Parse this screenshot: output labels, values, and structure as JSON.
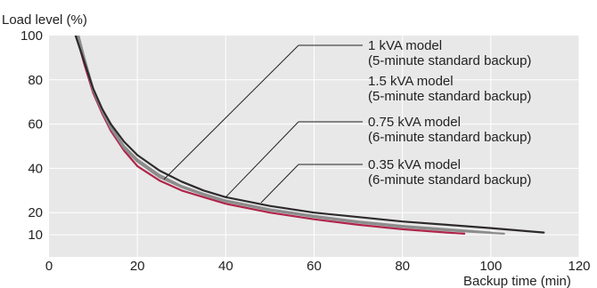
{
  "chart_data": {
    "type": "line",
    "title": "",
    "xlabel": "Backup time (min)",
    "ylabel": "Load level (%)",
    "xlim": [
      0,
      120
    ],
    "ylim": [
      0,
      100
    ],
    "x_ticks": [
      0,
      20,
      40,
      60,
      80,
      100,
      120
    ],
    "y_ticks": [
      10,
      20,
      40,
      60,
      80,
      100
    ],
    "grid": true,
    "colors": {
      "background": "#e8e8e8",
      "grid": "#ffffff",
      "dark_series": "#2e2a2c",
      "gray_series": "#8c8c8c",
      "red_series": "#b0244a",
      "annotation_line": "#222222"
    },
    "series": [
      {
        "name": "1 kVA model (5-minute standard backup)",
        "color": "#8c8c8c",
        "points": [
          [
            6.7,
            100
          ],
          [
            8,
            90
          ],
          [
            10,
            76
          ],
          [
            12,
            67
          ],
          [
            14,
            59
          ],
          [
            17,
            50
          ],
          [
            20,
            44
          ],
          [
            25,
            37
          ],
          [
            30,
            32
          ],
          [
            35,
            28.5
          ],
          [
            40,
            25.5
          ],
          [
            50,
            21.5
          ],
          [
            60,
            18.5
          ],
          [
            70,
            16
          ],
          [
            80,
            14
          ],
          [
            90,
            12.5
          ],
          [
            100,
            11
          ]
        ]
      },
      {
        "name": "1.5 kVA model (5-minute standard backup)",
        "color": "#b0244a",
        "points": [
          [
            6.2,
            100
          ],
          [
            8,
            87
          ],
          [
            10,
            74
          ],
          [
            12,
            65
          ],
          [
            14,
            57
          ],
          [
            17,
            48
          ],
          [
            20,
            41
          ],
          [
            25,
            34.5
          ],
          [
            30,
            30
          ],
          [
            35,
            27
          ],
          [
            40,
            24
          ],
          [
            50,
            20
          ],
          [
            60,
            17
          ],
          [
            70,
            14.5
          ],
          [
            80,
            12.5
          ],
          [
            90,
            11
          ],
          [
            94,
            10.5
          ]
        ]
      },
      {
        "name": "0.75 kVA model (6-minute standard backup)",
        "color": "#8c8c8c",
        "points": [
          [
            6.5,
            100
          ],
          [
            8,
            89
          ],
          [
            10,
            75
          ],
          [
            12,
            66
          ],
          [
            14,
            58
          ],
          [
            17,
            49
          ],
          [
            20,
            43
          ],
          [
            25,
            36
          ],
          [
            30,
            31.5
          ],
          [
            35,
            28
          ],
          [
            40,
            25
          ],
          [
            50,
            21
          ],
          [
            60,
            18
          ],
          [
            70,
            15.5
          ],
          [
            80,
            13.5
          ],
          [
            90,
            12
          ],
          [
            103,
            10.5
          ]
        ]
      },
      {
        "name": "0.35 kVA model (6-minute standard backup)",
        "color": "#2e2a2c",
        "points": [
          [
            6,
            100
          ],
          [
            8,
            88
          ],
          [
            10,
            76
          ],
          [
            12,
            67
          ],
          [
            14,
            60
          ],
          [
            17,
            52
          ],
          [
            20,
            46
          ],
          [
            25,
            39
          ],
          [
            30,
            34
          ],
          [
            35,
            30
          ],
          [
            40,
            27
          ],
          [
            50,
            23
          ],
          [
            60,
            20
          ],
          [
            70,
            18
          ],
          [
            80,
            16
          ],
          [
            90,
            14.5
          ],
          [
            100,
            13
          ],
          [
            112,
            11
          ]
        ]
      }
    ],
    "legend": [
      {
        "model": "1 kVA model",
        "backup": "(5-minute standard backup)",
        "target": [
          26,
          35
        ]
      },
      {
        "model": "1.5 kVA model",
        "backup": "(5-minute standard backup)",
        "target": null
      },
      {
        "model": "0.75 kVA model",
        "backup": "(6-minute standard backup)",
        "target": [
          40,
          27
        ]
      },
      {
        "model": "0.35 kVA model",
        "backup": "(6-minute standard backup)",
        "target": [
          48,
          24.5
        ]
      }
    ]
  }
}
